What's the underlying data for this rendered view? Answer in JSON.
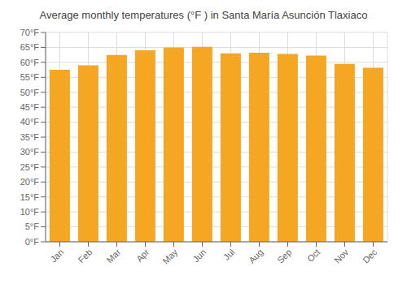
{
  "chart_data": {
    "type": "bar",
    "title": "Average monthly temperatures (°F ) in Santa María Asunción Tlaxiaco",
    "categories": [
      "Jan",
      "Feb",
      "Mar",
      "Apr",
      "May",
      "Jun",
      "Jul",
      "Aug",
      "Sep",
      "Oct",
      "Nov",
      "Dec"
    ],
    "values": [
      57.5,
      59.0,
      62.5,
      64.0,
      65.0,
      65.2,
      63.0,
      63.2,
      62.8,
      62.3,
      59.5,
      58.2
    ],
    "color": "#F5A623",
    "ylim": [
      0,
      70
    ],
    "yticks": [
      {
        "value": 0,
        "label": "0°F"
      },
      {
        "value": 5,
        "label": "5°F"
      },
      {
        "value": 10,
        "label": "10°F"
      },
      {
        "value": 15,
        "label": "15°F"
      },
      {
        "value": 20,
        "label": "20°F"
      },
      {
        "value": 25,
        "label": "25°F"
      },
      {
        "value": 30,
        "label": "30°F"
      },
      {
        "value": 35,
        "label": "35°F"
      },
      {
        "value": 40,
        "label": "40°F"
      },
      {
        "value": 45,
        "label": "45°F"
      },
      {
        "value": 50,
        "label": "50°F"
      },
      {
        "value": 55,
        "label": "55°F"
      },
      {
        "value": 60,
        "label": "60°F"
      },
      {
        "value": 65,
        "label": "65°F"
      },
      {
        "value": 70,
        "label": "70°F"
      }
    ],
    "grid": true
  }
}
